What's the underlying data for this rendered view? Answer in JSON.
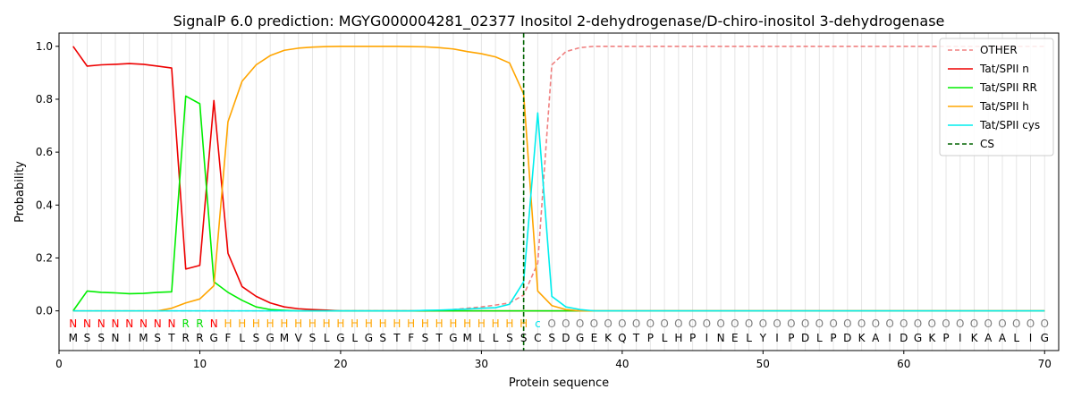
{
  "chart_data": {
    "type": "line",
    "title": "SignalP 6.0 prediction: MGYG000004281_02377 Inositol 2-dehydrogenase/D-chiro-inositol 3-dehydrogenase",
    "xlabel": "Protein sequence",
    "ylabel": "Probability",
    "xlim": [
      0,
      71
    ],
    "ylim": [
      -0.15,
      1.05
    ],
    "x_ticks": [
      0,
      10,
      20,
      30,
      40,
      50,
      60,
      70
    ],
    "y_ticks": [
      0.0,
      0.2,
      0.4,
      0.6,
      0.8,
      1.0
    ],
    "grid": "vertical lines at each residue",
    "legend_position": "top-right",
    "cleavage_site": 33,
    "sequence": [
      "M",
      "S",
      "S",
      "N",
      "I",
      "M",
      "S",
      "T",
      "R",
      "R",
      "G",
      "F",
      "L",
      "S",
      "G",
      "M",
      "V",
      "S",
      "L",
      "G",
      "L",
      "G",
      "S",
      "T",
      "F",
      "S",
      "T",
      "G",
      "M",
      "L",
      "L",
      "S",
      "S",
      "C",
      "S",
      "D",
      "G",
      "E",
      "K",
      "Q",
      "T",
      "P",
      "L",
      "H",
      "P",
      "I",
      "N",
      "E",
      "L",
      "Y",
      "I",
      "P",
      "D",
      "L",
      "P",
      "D",
      "K",
      "A",
      "I",
      "D",
      "G",
      "K",
      "P",
      "I",
      "K",
      "A",
      "A",
      "L",
      "I",
      "G"
    ],
    "region_labels": [
      "N",
      "N",
      "N",
      "N",
      "N",
      "N",
      "N",
      "N",
      "R",
      "R",
      "N",
      "H",
      "H",
      "H",
      "H",
      "H",
      "H",
      "H",
      "H",
      "H",
      "H",
      "H",
      "H",
      "H",
      "H",
      "H",
      "H",
      "H",
      "H",
      "H",
      "H",
      "H",
      "H",
      "c",
      "O",
      "O",
      "O",
      "O",
      "O",
      "O",
      "O",
      "O",
      "O",
      "O",
      "O",
      "O",
      "O",
      "O",
      "O",
      "O",
      "O",
      "O",
      "O",
      "O",
      "O",
      "O",
      "O",
      "O",
      "O",
      "O",
      "O",
      "O",
      "O",
      "O",
      "O",
      "O",
      "O",
      "O",
      "O",
      "O"
    ],
    "region_colors": {
      "N": "#ff0000",
      "R": "#00dd00",
      "H": "#ffa500",
      "c": "#00e5ee",
      "O": "#808080"
    },
    "series": [
      {
        "name": "OTHER",
        "color": "#f08080",
        "dashed": true,
        "values": [
          0,
          0,
          0,
          0,
          0,
          0,
          0,
          0,
          0,
          0,
          0,
          0,
          0,
          0,
          0,
          0,
          0,
          0,
          0,
          0,
          0,
          0,
          0,
          0,
          0,
          0,
          0,
          0.005,
          0.01,
          0.015,
          0.022,
          0.03,
          0.06,
          0.18,
          0.93,
          0.98,
          0.995,
          1,
          1,
          1,
          1,
          1,
          1,
          1,
          1,
          1,
          1,
          1,
          1,
          1,
          1,
          1,
          1,
          1,
          1,
          1,
          1,
          1,
          1,
          1,
          1,
          1,
          1,
          1,
          1,
          1,
          1,
          1,
          1,
          1
        ]
      },
      {
        "name": "Tat/SPII n",
        "color": "#ee0000",
        "dashed": false,
        "values": [
          1.0,
          0.925,
          0.93,
          0.932,
          0.935,
          0.932,
          0.925,
          0.918,
          0.158,
          0.172,
          0.795,
          0.218,
          0.092,
          0.055,
          0.03,
          0.015,
          0.008,
          0.005,
          0.003,
          0,
          0,
          0,
          0,
          0,
          0,
          0,
          0,
          0,
          0,
          0,
          0,
          0,
          0,
          0,
          0,
          0,
          0,
          0,
          0,
          0,
          0,
          0,
          0,
          0,
          0,
          0,
          0,
          0,
          0,
          0,
          0,
          0,
          0,
          0,
          0,
          0,
          0,
          0,
          0,
          0,
          0,
          0,
          0,
          0,
          0,
          0,
          0,
          0,
          0,
          0
        ]
      },
      {
        "name": "Tat/SPII RR",
        "color": "#00ee00",
        "dashed": false,
        "values": [
          0,
          0.075,
          0.07,
          0.068,
          0.065,
          0.066,
          0.07,
          0.072,
          0.812,
          0.783,
          0.11,
          0.07,
          0.04,
          0.015,
          0.005,
          0.002,
          0,
          0,
          0,
          0,
          0,
          0,
          0,
          0,
          0,
          0,
          0,
          0,
          0,
          0,
          0,
          0,
          0,
          0,
          0,
          0,
          0,
          0,
          0,
          0,
          0,
          0,
          0,
          0,
          0,
          0,
          0,
          0,
          0,
          0,
          0,
          0,
          0,
          0,
          0,
          0,
          0,
          0,
          0,
          0,
          0,
          0,
          0,
          0,
          0,
          0,
          0,
          0,
          0,
          0
        ]
      },
      {
        "name": "Tat/SPII h",
        "color": "#ffa500",
        "dashed": false,
        "values": [
          0,
          0,
          0,
          0,
          0,
          0,
          0,
          0.01,
          0.03,
          0.045,
          0.095,
          0.715,
          0.868,
          0.93,
          0.965,
          0.985,
          0.993,
          0.997,
          0.999,
          1.0,
          1.0,
          1.0,
          1.0,
          1.0,
          0.999,
          0.998,
          0.995,
          0.99,
          0.98,
          0.972,
          0.96,
          0.937,
          0.82,
          0.075,
          0.02,
          0.005,
          0,
          0,
          0,
          0,
          0,
          0,
          0,
          0,
          0,
          0,
          0,
          0,
          0,
          0,
          0,
          0,
          0,
          0,
          0,
          0,
          0,
          0,
          0,
          0,
          0,
          0,
          0,
          0,
          0,
          0,
          0,
          0,
          0,
          0
        ]
      },
      {
        "name": "Tat/SPII cys",
        "color": "#00eeee",
        "dashed": false,
        "values": [
          0,
          0,
          0,
          0,
          0,
          0,
          0,
          0,
          0,
          0,
          0,
          0,
          0,
          0,
          0,
          0,
          0,
          0,
          0,
          0,
          0,
          0,
          0,
          0,
          0,
          0.002,
          0.003,
          0.005,
          0.007,
          0.01,
          0.012,
          0.025,
          0.11,
          0.748,
          0.055,
          0.015,
          0.005,
          0,
          0,
          0,
          0,
          0,
          0,
          0,
          0,
          0,
          0,
          0,
          0,
          0,
          0,
          0,
          0,
          0,
          0,
          0,
          0,
          0,
          0,
          0,
          0,
          0,
          0,
          0,
          0,
          0,
          0,
          0,
          0,
          0
        ]
      }
    ],
    "cs_legend_label": "CS",
    "cs_color": "#006400"
  }
}
